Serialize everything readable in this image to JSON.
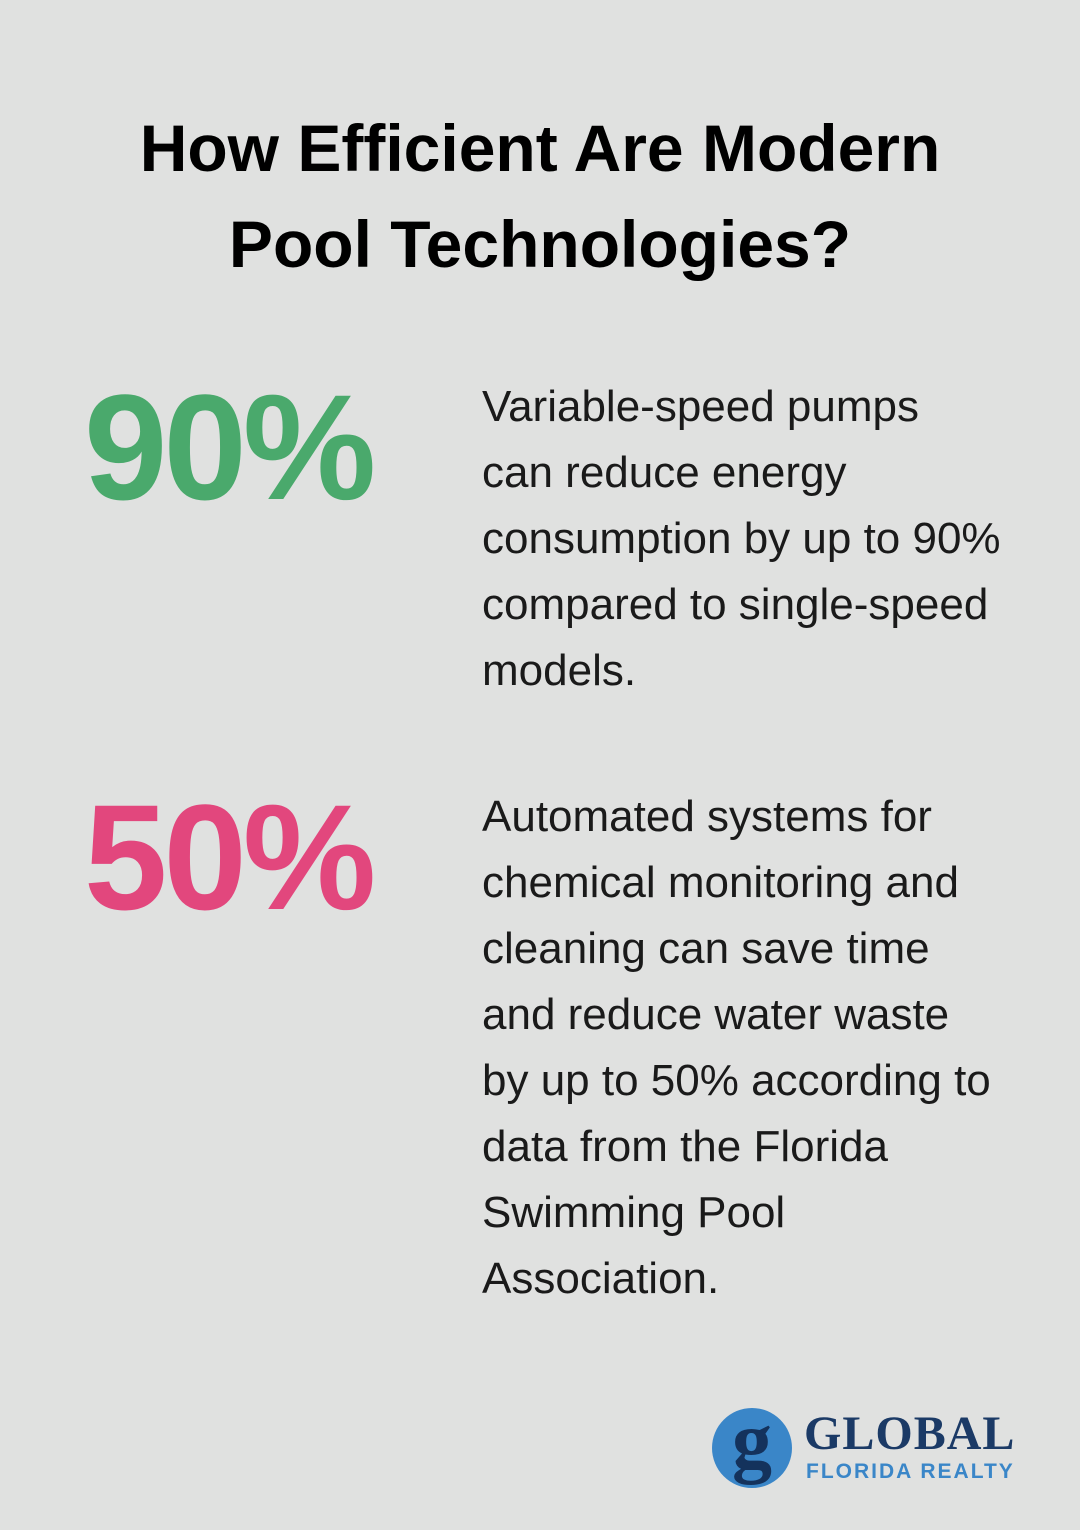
{
  "header": {
    "title": "How Efficient Are Modern Pool Technologies?"
  },
  "stats": [
    {
      "value": "90%",
      "text": "Variable-speed pumps can reduce energy consumption by up to 90% compared to single-speed models."
    },
    {
      "value": "50%",
      "text": "Automated systems for chemical monitoring and cleaning can save time and reduce water waste by up to 50% according to data from the Florida Swimming Pool Association."
    }
  ],
  "logo": {
    "mark": "g",
    "name": "GLOBAL",
    "tagline": "FLORIDA REALTY"
  }
}
